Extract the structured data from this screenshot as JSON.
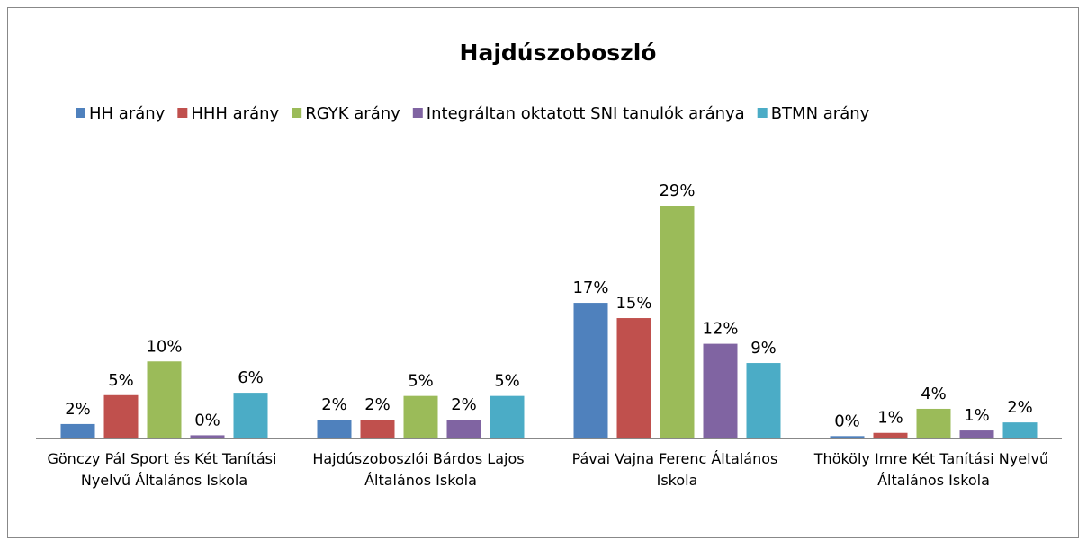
{
  "chart_data": {
    "type": "bar",
    "title": "Hajdúszoboszló",
    "categories": [
      "Gönczy Pál Sport és Két Tanítási Nyelvű Általános Iskola",
      "Hajdúszoboszlói Bárdos Lajos Általános Iskola",
      "Pávai Vajna Ferenc Általános Iskola",
      "Thököly Imre Két Tanítási Nyelvű Általános Iskola"
    ],
    "series": [
      {
        "name": "HH arány",
        "color": "#4f81bd",
        "values": [
          1.8,
          2.35,
          16.9,
          0.3
        ],
        "value_labels": [
          "2%",
          "2%",
          "17%",
          "0%"
        ]
      },
      {
        "name": "HHH arány",
        "color": "#c0504d",
        "values": [
          5.4,
          2.35,
          15.0,
          0.7
        ],
        "value_labels": [
          "5%",
          "2%",
          "15%",
          "1%"
        ]
      },
      {
        "name": "RGYK arány",
        "color": "#9bbb59",
        "values": [
          9.6,
          5.3,
          29,
          3.7
        ],
        "value_labels": [
          "10%",
          "5%",
          "29%",
          "4%"
        ]
      },
      {
        "name": "Integráltan oktatott SNI tanulók aránya",
        "color": "#8064a2",
        "values": [
          0.4,
          2.35,
          11.8,
          1.0
        ],
        "value_labels": [
          "0%",
          "2%",
          "12%",
          "1%"
        ]
      },
      {
        "name": "BTMN arány",
        "color": "#4bacc6",
        "values": [
          5.7,
          5.3,
          9.4,
          2.0
        ],
        "value_labels": [
          "6%",
          "5%",
          "9%",
          "2%"
        ]
      }
    ],
    "legend": "top"
  }
}
